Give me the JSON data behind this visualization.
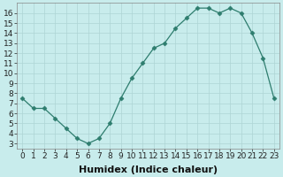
{
  "x": [
    0,
    1,
    2,
    3,
    4,
    5,
    6,
    7,
    8,
    9,
    10,
    11,
    12,
    13,
    14,
    15,
    16,
    17,
    18,
    19,
    20,
    21,
    22,
    23
  ],
  "y": [
    7.5,
    6.5,
    6.5,
    5.5,
    4.5,
    3.5,
    3.0,
    3.5,
    5.0,
    7.5,
    9.5,
    11.0,
    12.5,
    13.0,
    14.5,
    15.5,
    16.5,
    16.5,
    16.0,
    16.5,
    16.0,
    14.0,
    11.5,
    7.5
  ],
  "line_color": "#2e7d6e",
  "marker": "D",
  "bg_color": "#c8ecec",
  "grid_color": "#aed4d4",
  "xlabel": "Humidex (Indice chaleur)",
  "xlim": [
    -0.5,
    23.5
  ],
  "ylim": [
    2.5,
    17.0
  ],
  "yticks": [
    3,
    4,
    5,
    6,
    7,
    8,
    9,
    10,
    11,
    12,
    13,
    14,
    15,
    16
  ],
  "xticks": [
    0,
    1,
    2,
    3,
    4,
    5,
    6,
    7,
    8,
    9,
    10,
    11,
    12,
    13,
    14,
    15,
    16,
    17,
    18,
    19,
    20,
    21,
    22,
    23
  ],
  "xlabel_fontsize": 8,
  "tick_fontsize": 6.5,
  "markersize": 2.5,
  "linewidth": 0.9
}
